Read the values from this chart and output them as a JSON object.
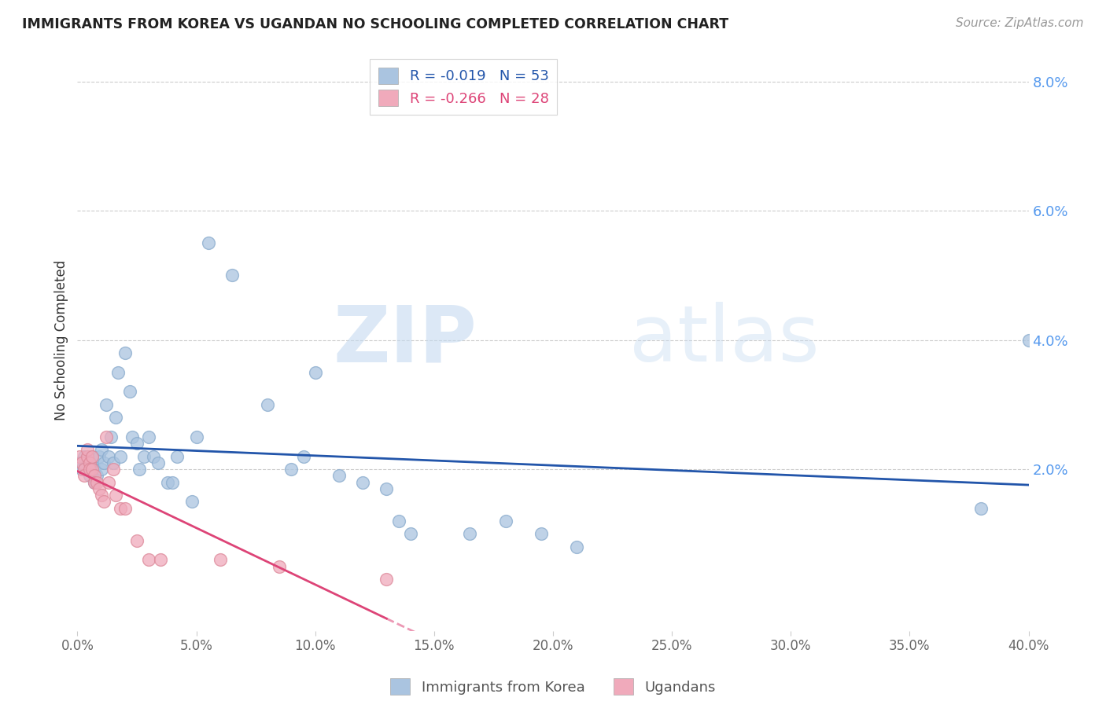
{
  "title": "IMMIGRANTS FROM KOREA VS UGANDAN NO SCHOOLING COMPLETED CORRELATION CHART",
  "source": "Source: ZipAtlas.com",
  "ylabel": "No Schooling Completed",
  "xlim": [
    0.0,
    0.4
  ],
  "ylim": [
    -0.005,
    0.085
  ],
  "xticks": [
    0.0,
    0.05,
    0.1,
    0.15,
    0.2,
    0.25,
    0.3,
    0.35,
    0.4
  ],
  "yticks_right": [
    0.02,
    0.04,
    0.06,
    0.08
  ],
  "korea_R": "-0.019",
  "korea_N": "53",
  "uganda_R": "-0.266",
  "uganda_N": "28",
  "korea_color": "#aac4e0",
  "korea_edge_color": "#88aacc",
  "uganda_color": "#f0aabb",
  "uganda_edge_color": "#dd8899",
  "korea_line_color": "#2255aa",
  "uganda_line_color": "#dd4477",
  "watermark_zip": "ZIP",
  "watermark_atlas": "atlas",
  "korea_x": [
    0.001,
    0.002,
    0.003,
    0.003,
    0.004,
    0.005,
    0.005,
    0.006,
    0.007,
    0.007,
    0.008,
    0.009,
    0.01,
    0.01,
    0.011,
    0.012,
    0.013,
    0.014,
    0.015,
    0.016,
    0.017,
    0.018,
    0.02,
    0.022,
    0.023,
    0.025,
    0.026,
    0.028,
    0.03,
    0.032,
    0.034,
    0.038,
    0.04,
    0.042,
    0.048,
    0.05,
    0.055,
    0.065,
    0.08,
    0.09,
    0.095,
    0.1,
    0.11,
    0.12,
    0.13,
    0.135,
    0.14,
    0.165,
    0.18,
    0.195,
    0.21,
    0.38,
    0.4
  ],
  "korea_y": [
    0.021,
    0.02,
    0.022,
    0.02,
    0.022,
    0.021,
    0.019,
    0.022,
    0.02,
    0.018,
    0.019,
    0.022,
    0.023,
    0.02,
    0.021,
    0.03,
    0.022,
    0.025,
    0.021,
    0.028,
    0.035,
    0.022,
    0.038,
    0.032,
    0.025,
    0.024,
    0.02,
    0.022,
    0.025,
    0.022,
    0.021,
    0.018,
    0.018,
    0.022,
    0.015,
    0.025,
    0.055,
    0.05,
    0.03,
    0.02,
    0.022,
    0.035,
    0.019,
    0.018,
    0.017,
    0.012,
    0.01,
    0.01,
    0.012,
    0.01,
    0.008,
    0.014,
    0.04
  ],
  "uganda_x": [
    0.001,
    0.002,
    0.003,
    0.003,
    0.004,
    0.004,
    0.005,
    0.005,
    0.006,
    0.006,
    0.007,
    0.007,
    0.008,
    0.009,
    0.01,
    0.011,
    0.012,
    0.013,
    0.015,
    0.016,
    0.018,
    0.02,
    0.025,
    0.03,
    0.035,
    0.06,
    0.085,
    0.13
  ],
  "uganda_y": [
    0.022,
    0.021,
    0.02,
    0.019,
    0.022,
    0.023,
    0.021,
    0.02,
    0.02,
    0.022,
    0.019,
    0.018,
    0.018,
    0.017,
    0.016,
    0.015,
    0.025,
    0.018,
    0.02,
    0.016,
    0.014,
    0.014,
    0.009,
    0.006,
    0.006,
    0.006,
    0.005,
    0.003
  ]
}
